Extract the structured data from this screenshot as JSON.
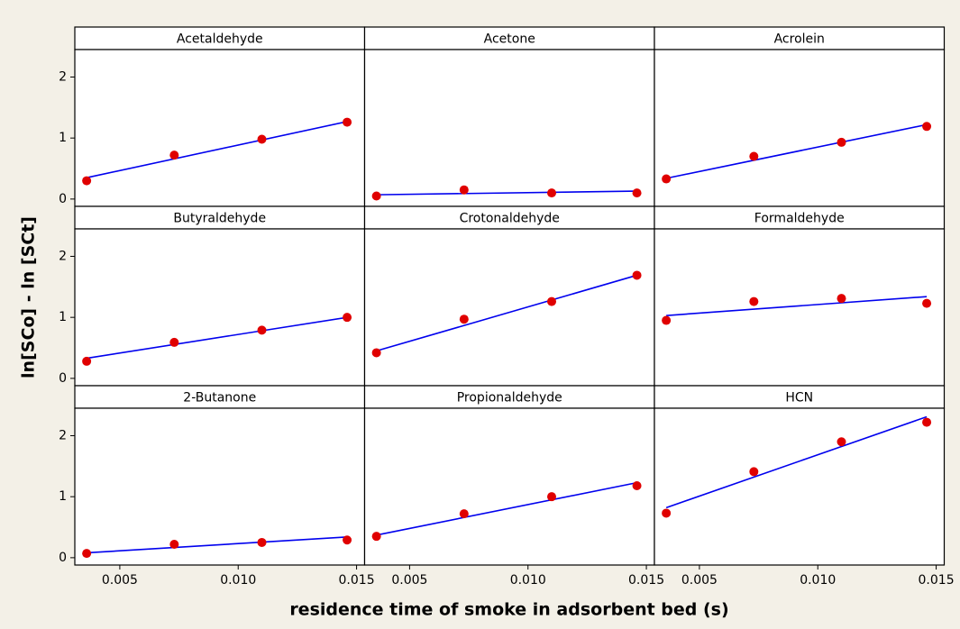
{
  "chart_data": {
    "type": "scatter",
    "xlabel": "residence time of smoke in adsorbent bed (s)",
    "ylabel": "ln[SCo] - ln [SCt]",
    "x": [
      0.0036,
      0.0073,
      0.011,
      0.0146
    ],
    "xlim": [
      0.0031,
      0.01534
    ],
    "ylim": [
      -0.12,
      2.45
    ],
    "xticks": [
      0.005,
      {
        "value": 0.01,
        "label": "0.010"
      },
      0.015
    ],
    "yticks": [
      0,
      1,
      2
    ],
    "point_color": "#e00000",
    "line_color": "#0000ee",
    "panels": [
      {
        "title": "Acetaldehyde",
        "values": [
          0.3,
          0.72,
          0.98,
          1.26
        ],
        "fit": [
          0.35,
          1.27
        ]
      },
      {
        "title": "Acetone",
        "values": [
          0.05,
          0.15,
          0.1,
          0.1
        ],
        "fit": [
          0.07,
          0.13
        ]
      },
      {
        "title": "Acrolein",
        "values": [
          0.33,
          0.7,
          0.93,
          1.19
        ],
        "fit": [
          0.34,
          1.22
        ]
      },
      {
        "title": "Butyraldehyde",
        "values": [
          0.28,
          0.59,
          0.79,
          1.0
        ],
        "fit": [
          0.33,
          1.0
        ]
      },
      {
        "title": "Crotonaldehyde",
        "values": [
          0.42,
          0.97,
          1.26,
          1.69
        ],
        "fit": [
          0.45,
          1.69
        ]
      },
      {
        "title": "Formaldehyde",
        "values": [
          0.95,
          1.26,
          1.31,
          1.23
        ],
        "fit": [
          1.03,
          1.34
        ]
      },
      {
        "title": "2-Butanone",
        "values": [
          0.07,
          0.22,
          0.25,
          0.29
        ],
        "fit": [
          0.08,
          0.34
        ]
      },
      {
        "title": "Propionaldehyde",
        "values": [
          0.35,
          0.72,
          1.0,
          1.18
        ],
        "fit": [
          0.37,
          1.23
        ]
      },
      {
        "title": "HCN",
        "values": [
          0.73,
          1.41,
          1.9,
          2.22
        ],
        "fit": [
          0.82,
          2.31
        ]
      }
    ]
  }
}
